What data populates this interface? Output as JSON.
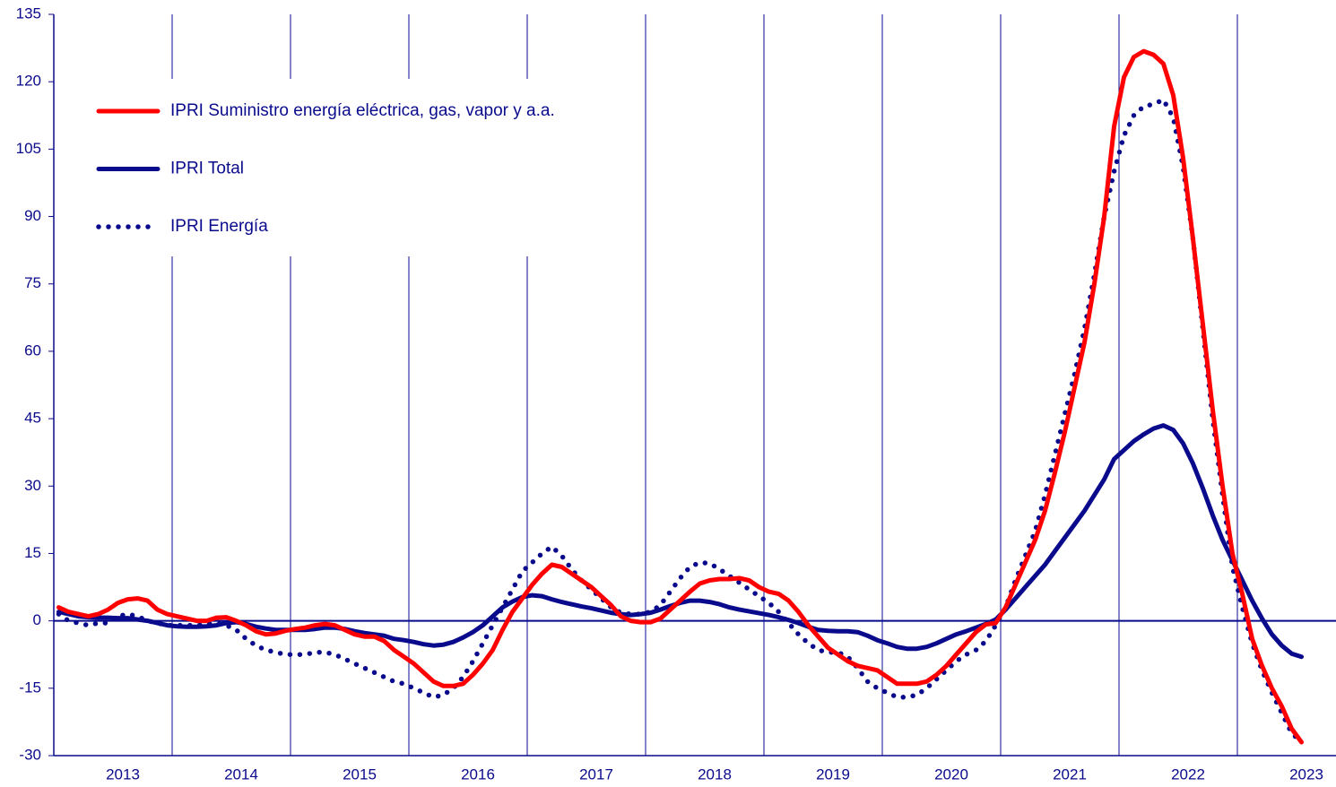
{
  "chart_data": {
    "type": "line",
    "categories": [
      null,
      null,
      null,
      null,
      null,
      null,
      "2013",
      null,
      null,
      null,
      null,
      null,
      null,
      null,
      null,
      null,
      null,
      null,
      "2014",
      null,
      null,
      null,
      null,
      null,
      null,
      null,
      null,
      null,
      null,
      null,
      "2015",
      null,
      null,
      null,
      null,
      null,
      null,
      null,
      null,
      null,
      null,
      null,
      "2016",
      null,
      null,
      null,
      null,
      null,
      null,
      null,
      null,
      null,
      null,
      null,
      "2017",
      null,
      null,
      null,
      null,
      null,
      null,
      null,
      null,
      null,
      null,
      null,
      "2018",
      null,
      null,
      null,
      null,
      null,
      null,
      null,
      null,
      null,
      null,
      null,
      "2019",
      null,
      null,
      null,
      null,
      null,
      null,
      null,
      null,
      null,
      null,
      null,
      "2020",
      null,
      null,
      null,
      null,
      null,
      null,
      null,
      null,
      null,
      null,
      null,
      "2021",
      null,
      null,
      null,
      null,
      null,
      null,
      null,
      null,
      null,
      null,
      null,
      "2022",
      null,
      null,
      null,
      null,
      null,
      null,
      null,
      null,
      null,
      null,
      null,
      "2023"
    ],
    "series": [
      {
        "name": "IPRI Suministro energía eléctrica, gas, vapor y a.a.",
        "color": "#ff0000",
        "style": "solid",
        "values": [
          3,
          2,
          1.5,
          1,
          1.5,
          2.5,
          4,
          4.8,
          5,
          4.5,
          2.5,
          1.5,
          1,
          0.5,
          0,
          0,
          0.7,
          0.8,
          0,
          -1,
          -2.3,
          -3,
          -2.8,
          -2.2,
          -1.8,
          -1.5,
          -1,
          -0.7,
          -1,
          -2,
          -3,
          -3.5,
          -3.5,
          -4.5,
          -6.5,
          -8,
          -9.5,
          -11.5,
          -13.5,
          -14.5,
          -14.5,
          -14,
          -12,
          -9.5,
          -6.5,
          -2,
          2,
          5,
          8,
          10.5,
          12.5,
          12,
          10.5,
          9,
          7.5,
          5.5,
          3.5,
          1,
          0,
          -0.3,
          -0.3,
          0.5,
          2.5,
          4.5,
          6.5,
          8.3,
          9,
          9.3,
          9.3,
          9.5,
          9,
          7.5,
          6.5,
          6,
          4.5,
          2,
          -1,
          -3.5,
          -6,
          -7.5,
          -9,
          -10,
          -10.5,
          -11,
          -12.5,
          -14,
          -14,
          -14,
          -13.5,
          -12,
          -10,
          -7.5,
          -5,
          -2.5,
          -0.8,
          -0.5,
          3,
          8,
          13,
          18,
          24.5,
          33,
          42,
          52,
          62,
          75,
          90,
          110,
          121,
          125.5,
          126.8,
          126,
          124,
          117,
          103,
          85,
          66,
          47,
          30,
          15,
          6,
          -4,
          -10,
          -15,
          -19,
          -24,
          -27
        ]
      },
      {
        "name": "IPRI Total",
        "color": "#0a0a8c",
        "style": "solid",
        "values": [
          2,
          1.5,
          1,
          0.8,
          0.7,
          0.7,
          0.6,
          0.6,
          0.3,
          0,
          -0.5,
          -1,
          -1.2,
          -1.3,
          -1.3,
          -1.2,
          -1,
          -0.5,
          -0.3,
          -0.7,
          -1.3,
          -1.7,
          -2,
          -2,
          -2,
          -2,
          -1.8,
          -1.5,
          -1.5,
          -1.8,
          -2.3,
          -2.7,
          -3,
          -3.3,
          -4,
          -4.3,
          -4.7,
          -5.2,
          -5.5,
          -5.3,
          -4.7,
          -3.7,
          -2.5,
          -1,
          1,
          3,
          4.3,
          5.3,
          5.7,
          5.5,
          4.8,
          4.2,
          3.7,
          3.2,
          2.8,
          2.3,
          1.8,
          1.5,
          1.3,
          1.5,
          1.8,
          2.5,
          3.3,
          4,
          4.5,
          4.5,
          4.2,
          3.7,
          3,
          2.5,
          2.1,
          1.7,
          1.3,
          0.8,
          0.2,
          -0.5,
          -1.3,
          -2,
          -2.2,
          -2.3,
          -2.3,
          -2.5,
          -3.3,
          -4.3,
          -5,
          -5.8,
          -6.2,
          -6.2,
          -5.8,
          -5,
          -4,
          -3,
          -2.3,
          -1.5,
          -0.7,
          0.3,
          2.5,
          5,
          7.5,
          10,
          12.5,
          15.5,
          18.5,
          21.5,
          24.5,
          28,
          31.5,
          36,
          38,
          40,
          41.5,
          42.8,
          43.5,
          42.5,
          39.5,
          35,
          29.5,
          23.5,
          18,
          13.5,
          9,
          4.5,
          0.5,
          -3,
          -5.5,
          -7.3,
          -8
        ]
      },
      {
        "name": "IPRI Energía",
        "color": "#0a0a8c",
        "style": "dotted",
        "values": [
          1.5,
          0,
          -0.5,
          -1,
          -0.5,
          -0.5,
          1,
          1.5,
          1,
          0,
          -0.5,
          -1,
          -1,
          -1,
          -1,
          -0.7,
          -0.5,
          -1,
          -2,
          -4,
          -5.5,
          -6.5,
          -7,
          -7.5,
          -7.5,
          -7.5,
          -7,
          -7,
          -7.5,
          -8.5,
          -9.5,
          -10.5,
          -11.5,
          -12.5,
          -13.5,
          -14,
          -15,
          -16,
          -17,
          -16.5,
          -15,
          -12.5,
          -9,
          -5,
          -1,
          3,
          7,
          11,
          13,
          15,
          16.5,
          14.5,
          11.5,
          9,
          7,
          5,
          3,
          1.8,
          1.5,
          1.5,
          2,
          3.5,
          6.5,
          9.5,
          12,
          13,
          12.8,
          11.5,
          10,
          8.5,
          7,
          5.5,
          4,
          2,
          -0.5,
          -3,
          -5,
          -6.5,
          -7,
          -7,
          -8,
          -10.5,
          -13.5,
          -15,
          -16,
          -17,
          -17,
          -16.5,
          -15,
          -13,
          -11,
          -9,
          -7.5,
          -6.5,
          -4.5,
          -1,
          3,
          9,
          14.5,
          20,
          28,
          37,
          46,
          55,
          65,
          77,
          90,
          100,
          108,
          112.5,
          114.5,
          115,
          116,
          112,
          101,
          85,
          65,
          45,
          28,
          12,
          3,
          -5,
          -11,
          -16,
          -20.5,
          -25,
          -27
        ]
      }
    ],
    "ylim": [
      -30,
      135
    ],
    "yticks": [
      -30,
      -15,
      0,
      15,
      30,
      45,
      60,
      75,
      90,
      105,
      120,
      135
    ],
    "grid": true
  }
}
